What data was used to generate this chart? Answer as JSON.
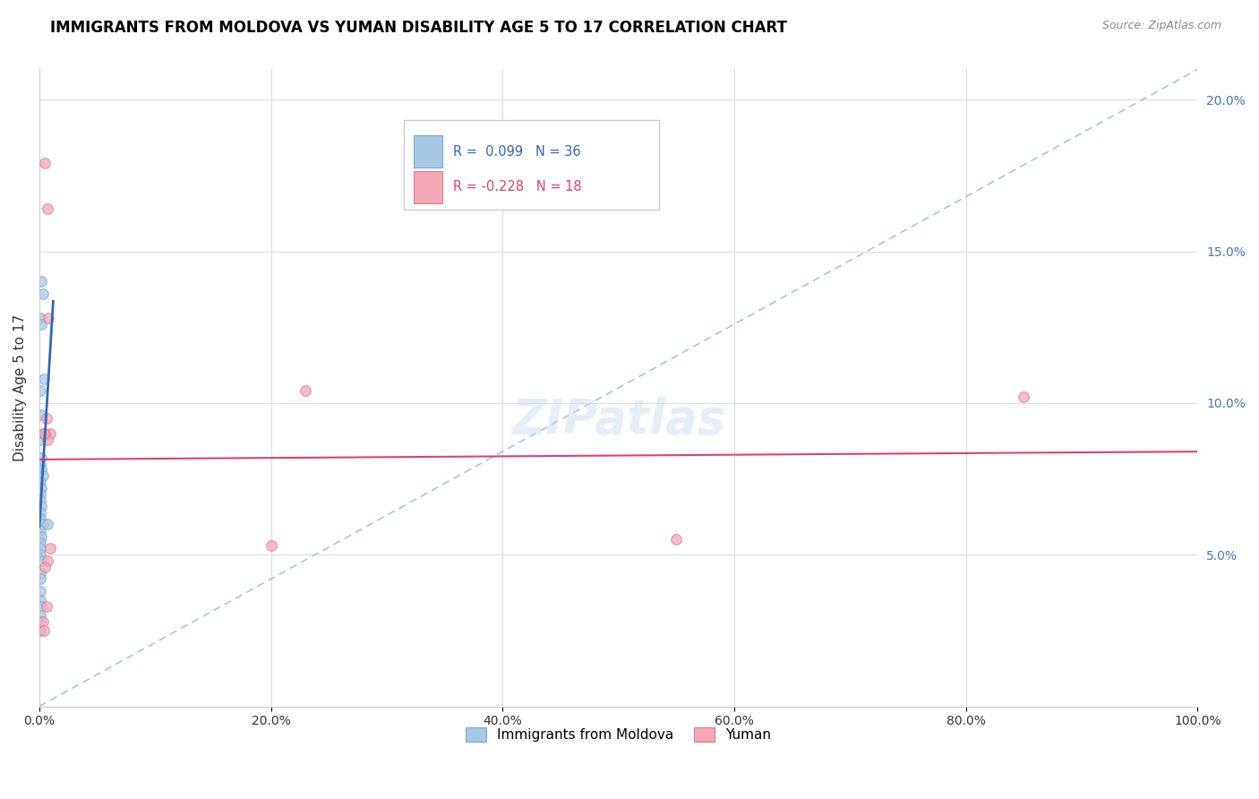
{
  "title": "IMMIGRANTS FROM MOLDOVA VS YUMAN DISABILITY AGE 5 TO 17 CORRELATION CHART",
  "source": "Source: ZipAtlas.com",
  "ylabel": "Disability Age 5 to 17",
  "xlim": [
    0,
    1.0
  ],
  "ylim": [
    0,
    0.21
  ],
  "xtick_vals": [
    0.0,
    0.2,
    0.4,
    0.6,
    0.8,
    1.0
  ],
  "xticklabels": [
    "0.0%",
    "20.0%",
    "40.0%",
    "60.0%",
    "80.0%",
    "100.0%"
  ],
  "yticks_right": [
    0.05,
    0.1,
    0.15,
    0.2
  ],
  "yticklabels_right": [
    "5.0%",
    "10.0%",
    "15.0%",
    "20.0%"
  ],
  "blue_color": "#A8C8E8",
  "pink_color": "#F4A8B8",
  "blue_edge_color": "#7AAACE",
  "pink_edge_color": "#E07890",
  "blue_line_color": "#3366BB",
  "pink_line_color": "#E04070",
  "diag_line_color": "#99BBDD",
  "scatter_alpha": 0.75,
  "scatter_size": 70,
  "moldova_x": [
    0.002,
    0.003,
    0.001,
    0.002,
    0.004,
    0.001,
    0.002,
    0.003,
    0.001,
    0.002,
    0.001,
    0.002,
    0.003,
    0.001,
    0.002,
    0.001,
    0.001,
    0.002,
    0.001,
    0.001,
    0.003,
    0.001,
    0.002,
    0.001,
    0.001,
    0.001,
    0.002,
    0.001,
    0.001,
    0.001,
    0.001,
    0.002,
    0.001,
    0.001,
    0.001,
    0.007
  ],
  "moldova_y": [
    0.14,
    0.136,
    0.128,
    0.126,
    0.108,
    0.104,
    0.096,
    0.09,
    0.088,
    0.082,
    0.08,
    0.078,
    0.076,
    0.074,
    0.072,
    0.07,
    0.068,
    0.066,
    0.064,
    0.062,
    0.06,
    0.058,
    0.056,
    0.054,
    0.052,
    0.05,
    0.048,
    0.044,
    0.042,
    0.038,
    0.035,
    0.033,
    0.03,
    0.028,
    0.025,
    0.06
  ],
  "yuman_x": [
    0.005,
    0.007,
    0.008,
    0.006,
    0.009,
    0.005,
    0.007,
    0.23,
    0.85,
    0.55,
    0.2,
    0.009,
    0.007,
    0.005,
    0.006,
    0.003,
    0.004,
    0.004
  ],
  "yuman_y": [
    0.179,
    0.164,
    0.128,
    0.095,
    0.09,
    0.09,
    0.088,
    0.104,
    0.102,
    0.055,
    0.053,
    0.052,
    0.048,
    0.046,
    0.033,
    0.028,
    0.025,
    0.09
  ],
  "blue_line_x0": 0.0,
  "blue_line_x1": 0.012,
  "pink_line_x0": 0.0,
  "pink_line_x1": 1.0
}
